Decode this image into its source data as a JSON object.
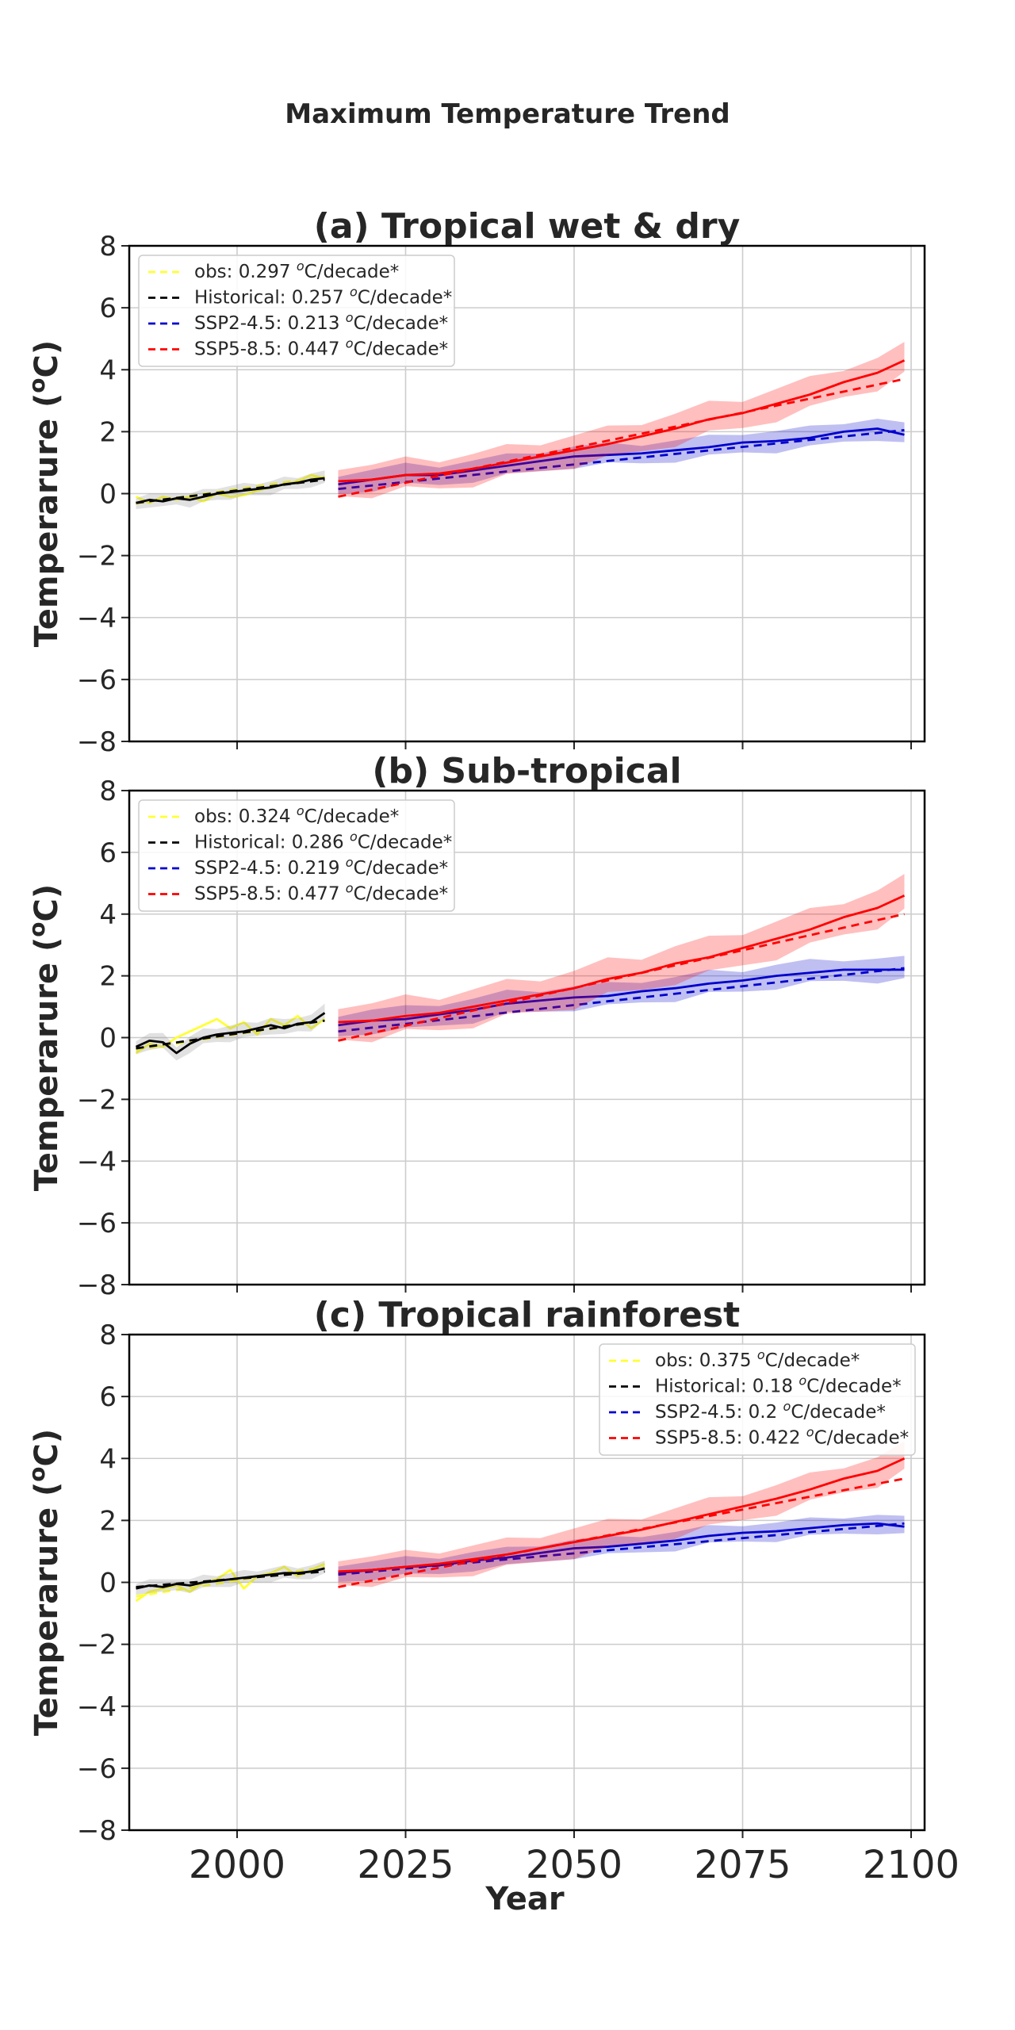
{
  "figure": {
    "title": "Maximum Temperature Trend",
    "xlabel": "Year"
  },
  "chart_data": [
    {
      "type": "line",
      "title": "(a) Tropical wet & dry",
      "ylabel": "Temperarure (oC)",
      "ylabel_main": "Temperarure (",
      "ylabel_sup": "o",
      "ylabel_end": "C)",
      "xlim": [
        1984,
        2102
      ],
      "ylim": [
        -8,
        8
      ],
      "yticks": [
        -8,
        -6,
        -4,
        -2,
        0,
        2,
        4,
        6,
        8
      ],
      "xticks": [
        2000,
        2025,
        2050,
        2075,
        2100
      ],
      "grid": true,
      "legend_position": "upper-left",
      "legend": [
        {
          "name": "obs: 0.297 oC/decade*",
          "prefix": "obs: 0.297 ",
          "sup": "o",
          "suffix": "C/decade*",
          "color": "#ffff33"
        },
        {
          "name": "Historical: 0.257 oC/decade*",
          "prefix": "Historical: 0.257 ",
          "sup": "o",
          "suffix": "C/decade*",
          "color": "#000000"
        },
        {
          "name": "SSP2-4.5: 0.213 oC/decade*",
          "prefix": "SSP2-4.5: 0.213 ",
          "sup": "o",
          "suffix": "C/decade*",
          "color": "#0000cc"
        },
        {
          "name": "SSP5-8.5: 0.447 oC/decade*",
          "prefix": "SSP5-8.5: 0.447 ",
          "sup": "o",
          "suffix": "C/decade*",
          "color": "#ff0000"
        }
      ],
      "series": [
        {
          "name": "obs",
          "color": "#ffff33",
          "x": [
            1985,
            1987,
            1989,
            1991,
            1993,
            1995,
            1997,
            1999,
            2001,
            2003,
            2005,
            2007,
            2009,
            2011,
            2013
          ],
          "y": [
            -0.1,
            -0.3,
            -0.1,
            -0.2,
            -0.1,
            -0.25,
            0.0,
            -0.1,
            -0.05,
            0.1,
            0.2,
            0.3,
            0.4,
            0.6,
            0.5
          ],
          "trend": [
            -0.32,
            0.55
          ]
        },
        {
          "name": "Historical",
          "color": "#000000",
          "x": [
            1985,
            1987,
            1989,
            1991,
            1993,
            1995,
            1997,
            1999,
            2001,
            2003,
            2005,
            2007,
            2009,
            2011,
            2013
          ],
          "y": [
            -0.3,
            -0.2,
            -0.25,
            -0.15,
            -0.2,
            -0.1,
            0.0,
            0.05,
            0.1,
            0.15,
            0.2,
            0.3,
            0.35,
            0.45,
            0.5
          ],
          "band": 0.25,
          "trend": [
            -0.3,
            0.45
          ]
        },
        {
          "name": "SSP2-4.5",
          "color": "#0000cc",
          "x": [
            2015,
            2020,
            2025,
            2030,
            2035,
            2040,
            2045,
            2050,
            2055,
            2060,
            2065,
            2070,
            2075,
            2080,
            2085,
            2090,
            2095,
            2099
          ],
          "y": [
            0.3,
            0.45,
            0.6,
            0.6,
            0.75,
            0.9,
            1.05,
            1.2,
            1.25,
            1.3,
            1.4,
            1.5,
            1.65,
            1.7,
            1.8,
            2.0,
            2.1,
            1.9
          ],
          "band": 0.4,
          "trend": [
            0.15,
            2.05
          ]
        },
        {
          "name": "SSP5-8.5",
          "color": "#ff0000",
          "x": [
            2015,
            2020,
            2025,
            2030,
            2035,
            2040,
            2045,
            2050,
            2055,
            2060,
            2065,
            2070,
            2075,
            2080,
            2085,
            2090,
            2095,
            2099
          ],
          "y": [
            0.4,
            0.45,
            0.6,
            0.65,
            0.8,
            1.0,
            1.2,
            1.4,
            1.6,
            1.85,
            2.1,
            2.4,
            2.6,
            2.9,
            3.2,
            3.6,
            3.9,
            4.3
          ],
          "band": 0.6,
          "trend": [
            -0.1,
            3.7
          ]
        }
      ]
    },
    {
      "type": "line",
      "title": "(b) Sub-tropical",
      "ylabel": "Temperarure (oC)",
      "ylabel_main": "Temperarure (",
      "ylabel_sup": "o",
      "ylabel_end": "C)",
      "xlim": [
        1984,
        2102
      ],
      "ylim": [
        -8,
        8
      ],
      "yticks": [
        -8,
        -6,
        -4,
        -2,
        0,
        2,
        4,
        6,
        8
      ],
      "xticks": [
        2000,
        2025,
        2050,
        2075,
        2100
      ],
      "grid": true,
      "legend_position": "upper-left",
      "legend": [
        {
          "name": "obs: 0.324 oC/decade*",
          "prefix": "obs: 0.324 ",
          "sup": "o",
          "suffix": "C/decade*",
          "color": "#ffff33"
        },
        {
          "name": "Historical: 0.286 oC/decade*",
          "prefix": "Historical: 0.286 ",
          "sup": "o",
          "suffix": "C/decade*",
          "color": "#000000"
        },
        {
          "name": "SSP2-4.5: 0.219 oC/decade*",
          "prefix": "SSP2-4.5: 0.219 ",
          "sup": "o",
          "suffix": "C/decade*",
          "color": "#0000cc"
        },
        {
          "name": "SSP5-8.5: 0.477 oC/decade*",
          "prefix": "SSP5-8.5: 0.477 ",
          "sup": "o",
          "suffix": "C/decade*",
          "color": "#ff0000"
        }
      ],
      "series": [
        {
          "name": "obs",
          "color": "#ffff33",
          "x": [
            1985,
            1987,
            1989,
            1991,
            1993,
            1995,
            1997,
            1999,
            2001,
            2003,
            2005,
            2007,
            2009,
            2011,
            2013
          ],
          "y": [
            -0.5,
            -0.2,
            -0.3,
            0.0,
            0.2,
            0.4,
            0.6,
            0.3,
            0.5,
            0.1,
            0.6,
            0.4,
            0.7,
            0.3,
            0.6
          ],
          "trend": [
            -0.4,
            0.55
          ]
        },
        {
          "name": "Historical",
          "color": "#000000",
          "x": [
            1985,
            1987,
            1989,
            1991,
            1993,
            1995,
            1997,
            1999,
            2001,
            2003,
            2005,
            2007,
            2009,
            2011,
            2013
          ],
          "y": [
            -0.3,
            -0.1,
            -0.15,
            -0.5,
            -0.2,
            0.0,
            0.1,
            0.15,
            0.2,
            0.3,
            0.4,
            0.3,
            0.45,
            0.5,
            0.8
          ],
          "band": 0.3,
          "trend": [
            -0.35,
            0.55
          ]
        },
        {
          "name": "SSP2-4.5",
          "color": "#0000cc",
          "x": [
            2015,
            2020,
            2025,
            2030,
            2035,
            2040,
            2045,
            2050,
            2055,
            2060,
            2065,
            2070,
            2075,
            2080,
            2085,
            2090,
            2095,
            2099
          ],
          "y": [
            0.4,
            0.55,
            0.6,
            0.75,
            0.9,
            1.1,
            1.2,
            1.3,
            1.35,
            1.5,
            1.6,
            1.75,
            1.85,
            2.0,
            2.1,
            2.2,
            2.2,
            2.2
          ],
          "band": 0.45,
          "trend": [
            0.2,
            2.25
          ]
        },
        {
          "name": "SSP5-8.5",
          "color": "#ff0000",
          "x": [
            2015,
            2020,
            2025,
            2030,
            2035,
            2040,
            2045,
            2050,
            2055,
            2060,
            2065,
            2070,
            2075,
            2080,
            2085,
            2090,
            2095,
            2099
          ],
          "y": [
            0.5,
            0.55,
            0.7,
            0.8,
            1.0,
            1.2,
            1.4,
            1.6,
            1.9,
            2.1,
            2.4,
            2.6,
            2.9,
            3.2,
            3.5,
            3.9,
            4.2,
            4.6
          ],
          "band": 0.7,
          "trend": [
            -0.1,
            4.0
          ]
        }
      ]
    },
    {
      "type": "line",
      "title": "(c) Tropical rainforest",
      "ylabel": "Temperarure (oC)",
      "ylabel_main": "Temperarure (",
      "ylabel_sup": "o",
      "ylabel_end": "C)",
      "xlim": [
        1984,
        2102
      ],
      "ylim": [
        -8,
        8
      ],
      "yticks": [
        -8,
        -6,
        -4,
        -2,
        0,
        2,
        4,
        6,
        8
      ],
      "xticks": [
        2000,
        2025,
        2050,
        2075,
        2100
      ],
      "grid": true,
      "legend_position": "upper-right",
      "legend": [
        {
          "name": "obs: 0.375 oC/decade*",
          "prefix": "obs: 0.375 ",
          "sup": "o",
          "suffix": "C/decade*",
          "color": "#ffff33"
        },
        {
          "name": "Historical: 0.18 oC/decade*",
          "prefix": "Historical: 0.18 ",
          "sup": "o",
          "suffix": "C/decade*",
          "color": "#000000"
        },
        {
          "name": "SSP2-4.5: 0.2 oC/decade*",
          "prefix": "SSP2-4.5: 0.2 ",
          "sup": "o",
          "suffix": "C/decade*",
          "color": "#0000cc"
        },
        {
          "name": "SSP5-8.5: 0.422 oC/decade*",
          "prefix": "SSP5-8.5: 0.422 ",
          "sup": "o",
          "suffix": "C/decade*",
          "color": "#ff0000"
        }
      ],
      "series": [
        {
          "name": "obs",
          "color": "#ffff33",
          "x": [
            1985,
            1987,
            1989,
            1991,
            1993,
            1995,
            1997,
            1999,
            2001,
            2003,
            2005,
            2007,
            2009,
            2011,
            2013
          ],
          "y": [
            -0.6,
            -0.3,
            -0.2,
            -0.1,
            -0.3,
            0.0,
            0.1,
            0.4,
            -0.2,
            0.2,
            0.3,
            0.5,
            0.2,
            0.4,
            0.6
          ],
          "trend": [
            -0.45,
            0.5
          ]
        },
        {
          "name": "Historical",
          "color": "#000000",
          "x": [
            1985,
            1987,
            1989,
            1991,
            1993,
            1995,
            1997,
            1999,
            2001,
            2003,
            2005,
            2007,
            2009,
            2011,
            2013
          ],
          "y": [
            -0.2,
            -0.1,
            -0.15,
            -0.05,
            -0.1,
            0.0,
            0.05,
            0.1,
            0.15,
            0.2,
            0.25,
            0.3,
            0.3,
            0.35,
            0.45
          ],
          "band": 0.25,
          "trend": [
            -0.15,
            0.35
          ]
        },
        {
          "name": "SSP2-4.5",
          "color": "#0000cc",
          "x": [
            2015,
            2020,
            2025,
            2030,
            2035,
            2040,
            2045,
            2050,
            2055,
            2060,
            2065,
            2070,
            2075,
            2080,
            2085,
            2090,
            2095,
            2099
          ],
          "y": [
            0.3,
            0.4,
            0.5,
            0.55,
            0.7,
            0.8,
            0.95,
            1.1,
            1.15,
            1.25,
            1.35,
            1.5,
            1.6,
            1.65,
            1.75,
            1.85,
            1.9,
            1.8
          ],
          "band": 0.35,
          "trend": [
            0.25,
            1.9
          ]
        },
        {
          "name": "SSP5-8.5",
          "color": "#ff0000",
          "x": [
            2015,
            2020,
            2025,
            2030,
            2035,
            2040,
            2045,
            2050,
            2055,
            2060,
            2065,
            2070,
            2075,
            2080,
            2085,
            2090,
            2095,
            2099
          ],
          "y": [
            0.35,
            0.4,
            0.5,
            0.6,
            0.75,
            0.9,
            1.1,
            1.3,
            1.5,
            1.7,
            1.95,
            2.2,
            2.45,
            2.7,
            3.0,
            3.35,
            3.6,
            4.0
          ],
          "band": 0.55,
          "trend": [
            -0.15,
            3.35
          ]
        }
      ]
    }
  ]
}
